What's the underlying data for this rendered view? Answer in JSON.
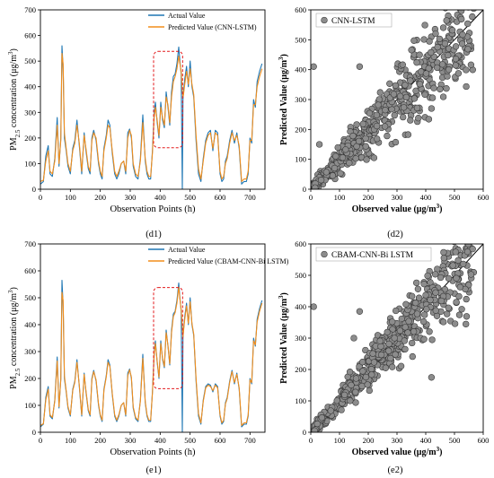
{
  "chart_data": [
    {
      "panel": "d1",
      "type": "line",
      "caption": "(d1)",
      "xlabel": "Observation Points (h)",
      "ylabel_parts": [
        "PM",
        "2.5",
        " concentration (μg/m",
        "3",
        ")"
      ],
      "xlim": [
        0,
        750
      ],
      "ylim": [
        0,
        700
      ],
      "xticks": [
        "0",
        "100",
        "200",
        "300",
        "400",
        "500",
        "600",
        "700"
      ],
      "yticks": [
        "0",
        "100",
        "200",
        "300",
        "400",
        "500",
        "600",
        "700"
      ],
      "legend_position": "top-right",
      "highlight_box": {
        "x": [
          378,
          475
        ],
        "y": [
          162,
          538
        ]
      },
      "series": [
        {
          "name": "Actual Value",
          "color": "#1f77b4",
          "x": [
            0,
            10,
            18,
            26,
            32,
            40,
            48,
            56,
            62,
            68,
            72,
            76,
            80,
            86,
            92,
            100,
            108,
            115,
            122,
            130,
            138,
            146,
            152,
            160,
            166,
            172,
            178,
            186,
            194,
            200,
            206,
            212,
            220,
            226,
            232,
            240,
            248,
            255,
            262,
            270,
            278,
            285,
            292,
            298,
            304,
            310,
            318,
            326,
            334,
            342,
            350,
            356,
            362,
            368,
            374,
            380,
            384,
            390,
            396,
            402,
            408,
            414,
            420,
            426,
            432,
            438,
            444,
            450,
            456,
            462,
            466,
            470,
            474,
            476,
            478,
            482,
            488,
            494,
            500,
            506,
            512,
            520,
            528,
            536,
            544,
            552,
            560,
            568,
            576,
            584,
            592,
            600,
            606,
            612,
            618,
            624,
            632,
            640,
            648,
            656,
            664,
            672,
            680,
            688,
            694,
            700,
            706,
            712,
            718,
            724,
            732,
            740
          ],
          "y": [
            20,
            30,
            130,
            170,
            60,
            50,
            120,
            280,
            90,
            200,
            560,
            470,
            200,
            150,
            90,
            60,
            160,
            190,
            270,
            170,
            60,
            220,
            150,
            80,
            60,
            200,
            230,
            190,
            100,
            60,
            40,
            160,
            210,
            270,
            250,
            140,
            60,
            40,
            60,
            100,
            110,
            60,
            220,
            235,
            200,
            90,
            50,
            40,
            120,
            290,
            110,
            60,
            40,
            40,
            150,
            300,
            340,
            260,
            200,
            340,
            270,
            240,
            380,
            320,
            250,
            380,
            440,
            450,
            490,
            555,
            500,
            450,
            0,
            350,
            380,
            430,
            480,
            400,
            500,
            400,
            360,
            190,
            60,
            30,
            120,
            190,
            220,
            230,
            150,
            230,
            220,
            60,
            30,
            40,
            110,
            130,
            190,
            230,
            180,
            220,
            160,
            20,
            30,
            30,
            60,
            200,
            180,
            350,
            320,
            420,
            460,
            490
          ]
        },
        {
          "name": "Predicted Value (CNN-LSTM)",
          "color": "#f28e1c",
          "x": [
            0,
            10,
            18,
            26,
            32,
            40,
            48,
            56,
            62,
            68,
            72,
            76,
            80,
            86,
            92,
            100,
            108,
            115,
            122,
            130,
            138,
            146,
            152,
            160,
            166,
            172,
            178,
            186,
            194,
            200,
            206,
            212,
            220,
            226,
            232,
            240,
            248,
            255,
            262,
            270,
            278,
            285,
            292,
            298,
            304,
            310,
            318,
            326,
            334,
            342,
            350,
            356,
            362,
            368,
            374,
            380,
            384,
            390,
            396,
            402,
            408,
            414,
            420,
            426,
            432,
            438,
            444,
            450,
            456,
            462,
            466,
            470,
            474,
            476,
            478,
            482,
            488,
            494,
            500,
            506,
            512,
            520,
            528,
            536,
            544,
            552,
            560,
            568,
            576,
            584,
            592,
            600,
            606,
            612,
            618,
            624,
            632,
            640,
            648,
            656,
            664,
            672,
            680,
            688,
            694,
            700,
            706,
            712,
            718,
            724,
            732,
            740
          ],
          "y": [
            30,
            35,
            110,
            150,
            70,
            60,
            110,
            250,
            100,
            190,
            530,
            490,
            220,
            160,
            100,
            70,
            150,
            180,
            250,
            180,
            70,
            210,
            160,
            90,
            70,
            190,
            220,
            200,
            110,
            70,
            50,
            150,
            200,
            250,
            240,
            150,
            70,
            50,
            70,
            100,
            110,
            70,
            200,
            230,
            210,
            100,
            60,
            50,
            110,
            260,
            120,
            70,
            50,
            50,
            140,
            280,
            320,
            270,
            210,
            320,
            280,
            250,
            360,
            330,
            260,
            360,
            420,
            440,
            470,
            520,
            490,
            460,
            380,
            360,
            370,
            410,
            460,
            410,
            470,
            410,
            370,
            210,
            80,
            40,
            110,
            180,
            210,
            220,
            160,
            220,
            210,
            70,
            40,
            50,
            100,
            120,
            180,
            220,
            190,
            210,
            170,
            30,
            40,
            40,
            70,
            190,
            190,
            330,
            330,
            400,
            440,
            470
          ]
        }
      ]
    },
    {
      "panel": "d2",
      "type": "scatter",
      "caption": "(d2)",
      "xlabel_parts": [
        "Observed value (μg/m",
        "3",
        ")"
      ],
      "ylabel_parts": [
        "Predicted Value (μg/m",
        "3",
        ")"
      ],
      "xlim": [
        0,
        600
      ],
      "ylim": [
        0,
        600
      ],
      "xticks": [
        "0",
        "100",
        "200",
        "300",
        "400",
        "500",
        "600"
      ],
      "yticks": [
        "0",
        "100",
        "200",
        "300",
        "400",
        "500",
        "600"
      ],
      "legend_position": "top-left",
      "reference_line": "y = x",
      "series": [
        {
          "name": "CNN-LSTM",
          "color": "#8c8c8c",
          "seed": 7,
          "spread": 0.16,
          "outliers": [
            [
              10,
              410
            ],
            [
              170,
              410
            ],
            [
              30,
              150
            ],
            [
              480,
              400
            ],
            [
              420,
              270
            ],
            [
              220,
              105
            ]
          ]
        }
      ]
    },
    {
      "panel": "e1",
      "type": "line",
      "caption": "(e1)",
      "xlabel": "Observation Points (h)",
      "ylabel_parts": [
        "PM",
        "2.5",
        " concentration (μg/m",
        "3",
        ")"
      ],
      "xlim": [
        0,
        750
      ],
      "ylim": [
        0,
        700
      ],
      "xticks": [
        "0",
        "100",
        "200",
        "300",
        "400",
        "500",
        "600",
        "700"
      ],
      "yticks": [
        "0",
        "100",
        "200",
        "300",
        "400",
        "500",
        "600",
        "700"
      ],
      "legend_position": "top-right",
      "highlight_box": {
        "x": [
          378,
          475
        ],
        "y": [
          162,
          538
        ]
      },
      "series": [
        {
          "name": "Actual Value",
          "color": "#1f77b4",
          "x": [
            0,
            10,
            18,
            26,
            32,
            40,
            48,
            56,
            62,
            68,
            72,
            76,
            80,
            86,
            92,
            100,
            108,
            115,
            122,
            130,
            138,
            146,
            152,
            160,
            166,
            172,
            178,
            186,
            194,
            200,
            206,
            212,
            220,
            226,
            232,
            240,
            248,
            255,
            262,
            270,
            278,
            285,
            292,
            298,
            304,
            310,
            318,
            326,
            334,
            342,
            350,
            356,
            362,
            368,
            374,
            380,
            384,
            390,
            396,
            402,
            408,
            414,
            420,
            426,
            432,
            438,
            444,
            450,
            456,
            462,
            466,
            470,
            474,
            476,
            478,
            482,
            488,
            494,
            500,
            506,
            512,
            520,
            528,
            536,
            544,
            552,
            560,
            568,
            576,
            584,
            592,
            600,
            606,
            612,
            618,
            624,
            632,
            640,
            648,
            656,
            664,
            672,
            680,
            688,
            694,
            700,
            706,
            712,
            718,
            724,
            732,
            740
          ],
          "y": [
            20,
            30,
            130,
            170,
            60,
            50,
            120,
            280,
            90,
            200,
            565,
            470,
            200,
            150,
            90,
            60,
            160,
            190,
            270,
            170,
            60,
            220,
            150,
            80,
            60,
            200,
            230,
            190,
            100,
            60,
            40,
            160,
            210,
            270,
            250,
            140,
            60,
            40,
            60,
            100,
            110,
            60,
            220,
            235,
            200,
            90,
            50,
            40,
            120,
            290,
            110,
            60,
            40,
            40,
            150,
            300,
            340,
            260,
            200,
            340,
            270,
            240,
            380,
            320,
            250,
            380,
            440,
            450,
            490,
            555,
            500,
            450,
            0,
            350,
            380,
            430,
            480,
            400,
            500,
            400,
            360,
            190,
            60,
            30,
            120,
            170,
            180,
            175,
            150,
            180,
            170,
            60,
            30,
            40,
            110,
            130,
            190,
            230,
            180,
            220,
            160,
            20,
            30,
            30,
            60,
            200,
            180,
            350,
            320,
            420,
            460,
            490
          ]
        },
        {
          "name": "Predicted Value (CBAM-CNN-Bi LSTM)",
          "color": "#f28e1c",
          "x": [
            0,
            10,
            18,
            26,
            32,
            40,
            48,
            56,
            62,
            68,
            72,
            76,
            80,
            86,
            92,
            100,
            108,
            115,
            122,
            130,
            138,
            146,
            152,
            160,
            166,
            172,
            178,
            186,
            194,
            200,
            206,
            212,
            220,
            226,
            232,
            240,
            248,
            255,
            262,
            270,
            278,
            285,
            292,
            298,
            304,
            310,
            318,
            326,
            334,
            342,
            350,
            356,
            362,
            368,
            374,
            380,
            384,
            390,
            396,
            402,
            408,
            414,
            420,
            426,
            432,
            438,
            444,
            450,
            456,
            462,
            466,
            470,
            474,
            476,
            478,
            482,
            488,
            494,
            500,
            506,
            512,
            520,
            528,
            536,
            544,
            552,
            560,
            568,
            576,
            584,
            592,
            600,
            606,
            612,
            618,
            624,
            632,
            640,
            648,
            656,
            664,
            672,
            680,
            688,
            694,
            700,
            706,
            712,
            718,
            724,
            732,
            740
          ],
          "y": [
            25,
            32,
            120,
            160,
            65,
            55,
            115,
            265,
            95,
            195,
            520,
            490,
            210,
            155,
            95,
            65,
            155,
            185,
            260,
            175,
            65,
            215,
            155,
            85,
            65,
            195,
            225,
            195,
            105,
            65,
            45,
            155,
            205,
            260,
            245,
            145,
            65,
            45,
            65,
            100,
            110,
            65,
            210,
            232,
            205,
            95,
            55,
            45,
            115,
            275,
            115,
            65,
            45,
            45,
            145,
            290,
            330,
            265,
            205,
            330,
            275,
            245,
            370,
            325,
            255,
            370,
            430,
            445,
            480,
            540,
            495,
            455,
            390,
            355,
            375,
            420,
            470,
            405,
            485,
            405,
            365,
            200,
            70,
            35,
            115,
            165,
            175,
            170,
            155,
            175,
            165,
            65,
            35,
            45,
            105,
            125,
            185,
            225,
            185,
            215,
            165,
            25,
            35,
            35,
            65,
            195,
            185,
            340,
            325,
            410,
            450,
            480
          ]
        }
      ]
    },
    {
      "panel": "e2",
      "type": "scatter",
      "caption": "(e2)",
      "xlabel_parts": [
        "Observed value (μg/m",
        "3",
        ")"
      ],
      "ylabel_parts": [
        "Predicted Value (μg/m",
        "3",
        ")"
      ],
      "xlim": [
        0,
        600
      ],
      "ylim": [
        0,
        600
      ],
      "xticks": [
        "0",
        "100",
        "200",
        "300",
        "400",
        "500",
        "600"
      ],
      "yticks": [
        "0",
        "100",
        "200",
        "300",
        "400",
        "500",
        "600"
      ],
      "legend_position": "top-left",
      "reference_line": "y = x",
      "series": [
        {
          "name": "CBAM-CNN-Bi LSTM",
          "color": "#8c8c8c",
          "seed": 13,
          "spread": 0.11,
          "outliers": [
            [
              10,
              400
            ],
            [
              170,
              385
            ],
            [
              420,
              175
            ],
            [
              150,
              300
            ]
          ]
        }
      ]
    }
  ]
}
